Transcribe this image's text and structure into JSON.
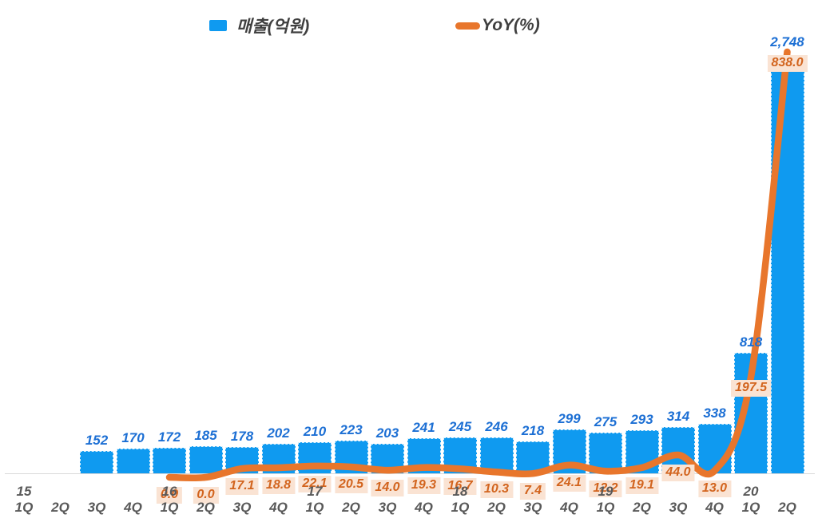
{
  "legend": {
    "items": [
      {
        "label": "매출(억원)",
        "swatch": "square",
        "color": "#0F9AF0"
      },
      {
        "label": "YoY(%)",
        "swatch": "line",
        "color": "#E8762C"
      }
    ]
  },
  "colors": {
    "bar": "#0F9AF0",
    "line": "#E8762C",
    "bar_value_text": "#1C6FD4",
    "yoy_label_text": "#D2641E",
    "yoy_label_bg": "#FAE3D3",
    "axis_text": "#595959",
    "axis_line": "#D9D9D9",
    "legend_text": "#3F3F3F",
    "background": "#FFFFFF"
  },
  "chart_data": {
    "type": "bar",
    "subtype": "combo-bar-line",
    "title": "",
    "legend_position": "top",
    "grid": false,
    "value_axes_visible": false,
    "categories": [
      "1Q",
      "2Q",
      "3Q",
      "4Q",
      "1Q",
      "2Q",
      "3Q",
      "4Q",
      "1Q",
      "2Q",
      "3Q",
      "4Q",
      "1Q",
      "2Q",
      "3Q",
      "4Q",
      "1Q",
      "2Q",
      "3Q",
      "4Q",
      "1Q",
      "2Q"
    ],
    "year_row": [
      {
        "index": 0,
        "label": "15"
      },
      {
        "index": 4,
        "label": "16"
      },
      {
        "index": 8,
        "label": "17"
      },
      {
        "index": 12,
        "label": "18"
      },
      {
        "index": 16,
        "label": "19"
      },
      {
        "index": 20,
        "label": "20"
      }
    ],
    "series": [
      {
        "name": "매출(억원)",
        "type": "bar",
        "color": "#0F9AF0",
        "values": [
          null,
          null,
          152,
          170,
          172,
          185,
          178,
          202,
          210,
          223,
          203,
          241,
          245,
          246,
          218,
          299,
          275,
          293,
          314,
          338,
          818,
          2748
        ]
      },
      {
        "name": "YoY(%)",
        "type": "line",
        "color": "#E8762C",
        "values": [
          null,
          null,
          null,
          null,
          0.0,
          0.0,
          17.1,
          18.8,
          22.1,
          20.5,
          14.0,
          19.3,
          16.7,
          10.3,
          7.4,
          24.1,
          12.2,
          19.1,
          44.0,
          13.0,
          197.5,
          838.0
        ]
      }
    ],
    "data_labels": true,
    "bar_axis_range": [
      0,
      2900
    ],
    "line_axis_range": [
      0,
      870
    ]
  }
}
